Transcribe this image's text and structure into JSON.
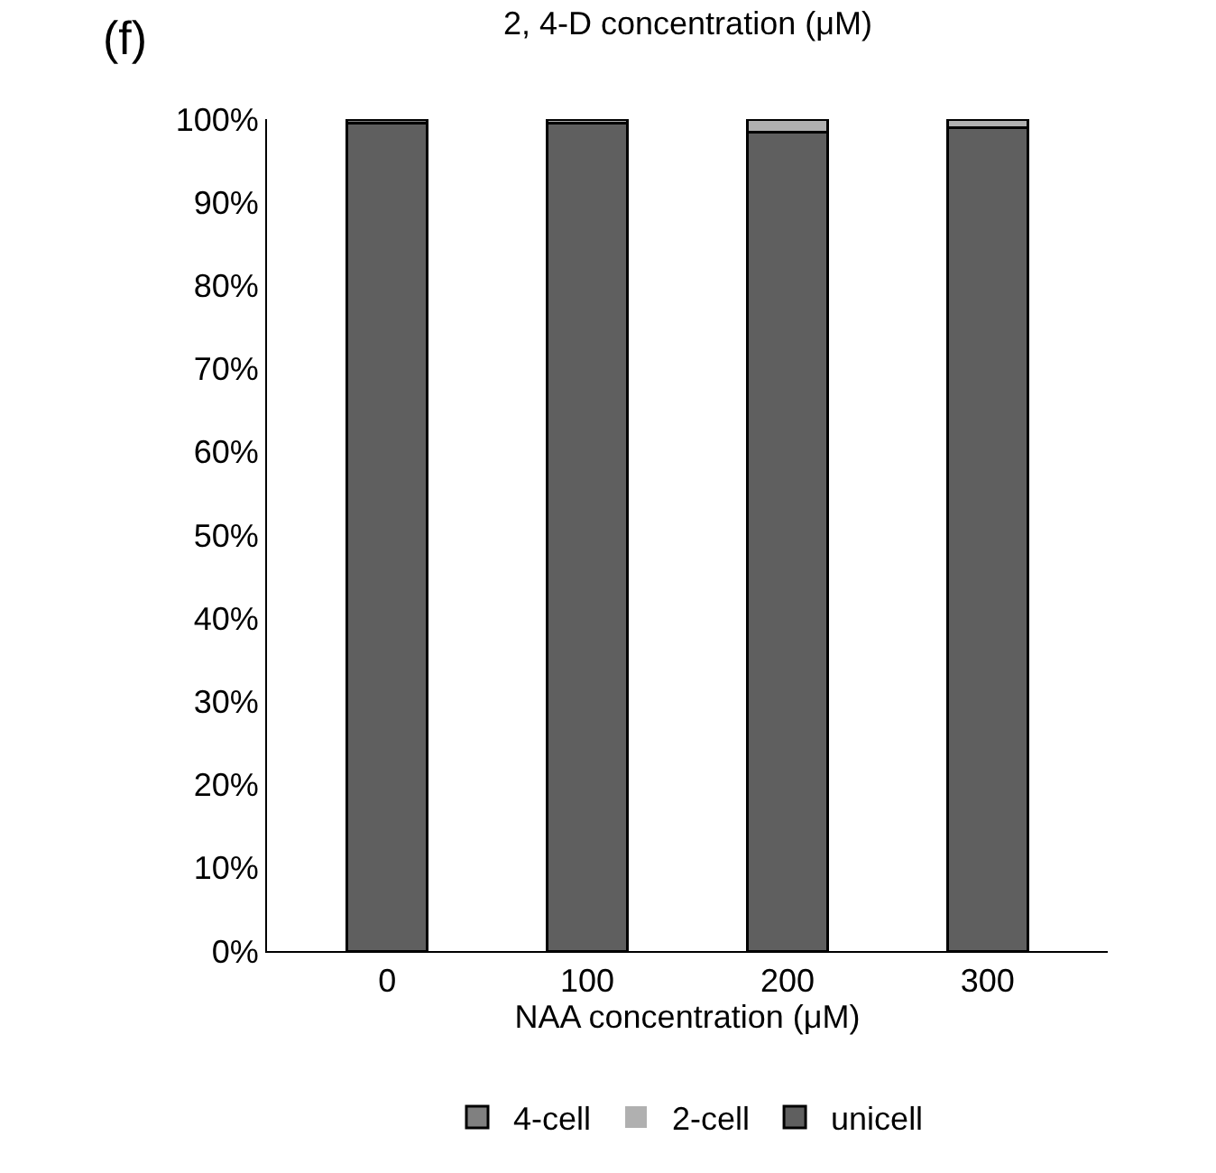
{
  "chart_data": {
    "type": "bar",
    "stacked": true,
    "categories": [
      "0",
      "100",
      "200",
      "300"
    ],
    "series": [
      {
        "name": "unicell",
        "color": "#5f5f5f",
        "values": [
          99.5,
          99.5,
          98.4,
          99.0
        ]
      },
      {
        "name": "2-cell",
        "color": "#b0b0b0",
        "values": [
          0,
          0.5,
          1.6,
          1.0
        ]
      },
      {
        "name": "4-cell",
        "color": "#808080",
        "values": [
          0.5,
          0,
          0,
          0
        ]
      }
    ],
    "xlabel": "NAA concentration (μM)",
    "ylim": [
      0,
      100
    ],
    "yticks": [
      {
        "value": 0,
        "label": "0%"
      },
      {
        "value": 10,
        "label": "10%"
      },
      {
        "value": 20,
        "label": "20%"
      },
      {
        "value": 30,
        "label": "30%"
      },
      {
        "value": 40,
        "label": "40%"
      },
      {
        "value": 50,
        "label": "50%"
      },
      {
        "value": 60,
        "label": "60%"
      },
      {
        "value": 70,
        "label": "70%"
      },
      {
        "value": 80,
        "label": "80%"
      },
      {
        "value": 90,
        "label": "90%"
      },
      {
        "value": 100,
        "label": "100%"
      }
    ],
    "grid": false,
    "legend": "bottom",
    "annotations": [
      "(f)",
      "2, 4-D concentration (μM)"
    ]
  }
}
